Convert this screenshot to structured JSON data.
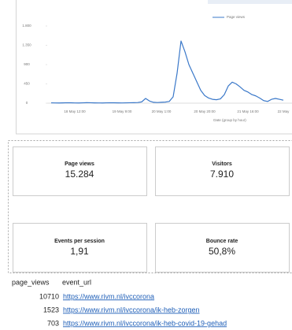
{
  "chart_data": {
    "type": "line",
    "x_label": "Date (group by hour)",
    "categories": [
      null,
      null,
      null,
      null,
      null,
      null,
      "18 May 12:00",
      null,
      null,
      null,
      null,
      null,
      null,
      null,
      null,
      null,
      null,
      null,
      "19 May 9:00",
      null,
      null,
      null,
      null,
      null,
      null,
      null,
      null,
      null,
      "20 May 1:00",
      null,
      null,
      null,
      null,
      null,
      null,
      null,
      null,
      null,
      null,
      "20 May 20:00",
      null,
      null,
      null,
      null,
      null,
      null,
      null,
      null,
      null,
      null,
      "21 May 16:00",
      null,
      null,
      null,
      null,
      null,
      null,
      null,
      null,
      "22 May"
    ],
    "series": [
      {
        "name": "Page views",
        "color": "#3a78c9",
        "values": [
          8,
          6,
          5,
          7,
          10,
          9,
          6,
          5,
          8,
          12,
          10,
          7,
          6,
          5,
          8,
          10,
          9,
          7,
          6,
          8,
          10,
          12,
          15,
          30,
          110,
          50,
          20,
          15,
          20,
          25,
          40,
          150,
          700,
          1450,
          1200,
          900,
          700,
          500,
          300,
          180,
          120,
          90,
          80,
          100,
          200,
          400,
          490,
          450,
          380,
          300,
          260,
          200,
          170,
          120,
          60,
          40,
          90,
          110,
          90,
          70
        ]
      }
    ],
    "ylim": [
      0,
      1800
    ],
    "yticks": [
      0,
      450,
      900,
      {
        "value": 1350,
        "label": "1.350"
      },
      {
        "value": 1800,
        "label": "1.800"
      }
    ],
    "grid": false,
    "legend": "top-right"
  },
  "cards": [
    {
      "label": "Page views",
      "value": "15.284"
    },
    {
      "label": "Visitors",
      "value": "7.910"
    },
    {
      "label": "Events per session",
      "value": "1,91"
    },
    {
      "label": "Bounce rate",
      "value": "50,8%"
    }
  ],
  "table": {
    "columns": [
      "page_views",
      "event_url"
    ],
    "rows": [
      [
        10710,
        "https://www.rivm.nl/ivccorona"
      ],
      [
        1523,
        "https://www.rivm.nl/ivccorona/ik-heb-zorgen"
      ],
      [
        703,
        "https://www.rivm.nl/ivccorona/ik-heb-covid-19-gehad"
      ]
    ]
  }
}
